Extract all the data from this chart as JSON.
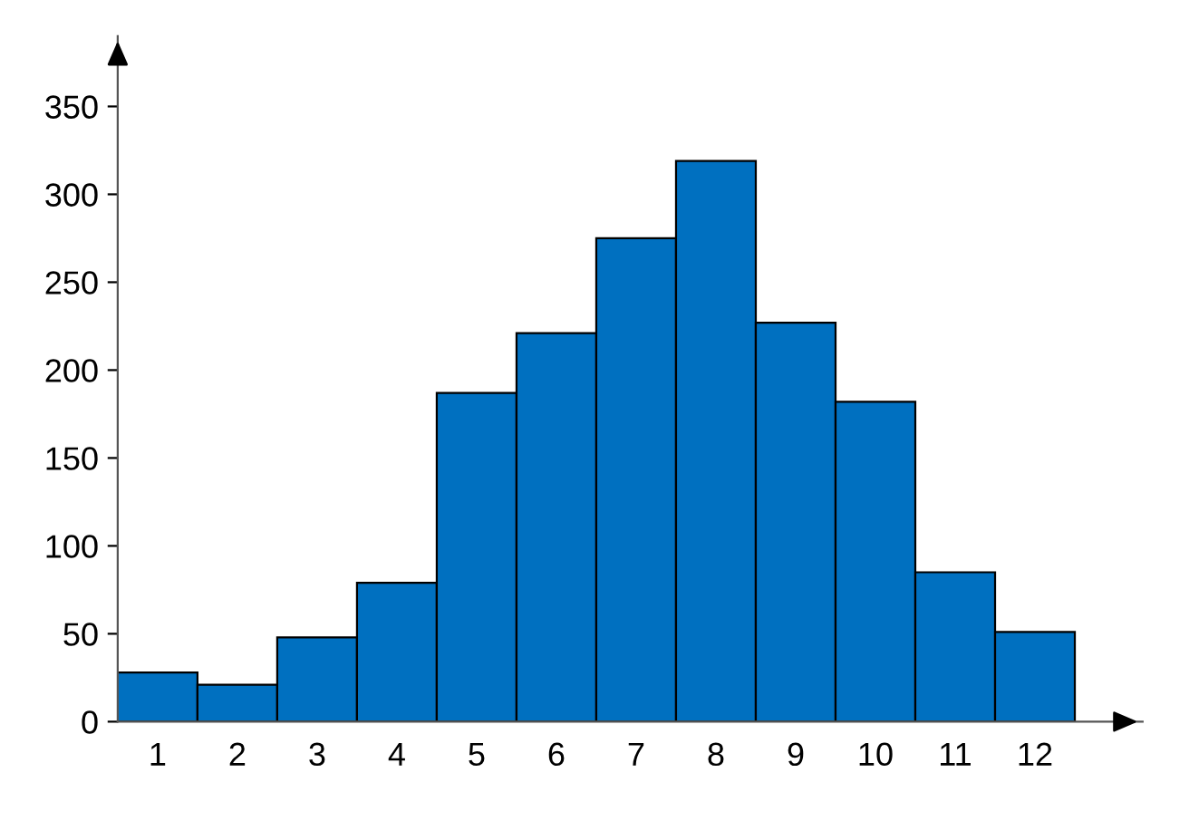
{
  "chart_data": {
    "type": "bar",
    "categories": [
      "1",
      "2",
      "3",
      "4",
      "5",
      "6",
      "7",
      "8",
      "9",
      "10",
      "11",
      "12"
    ],
    "values": [
      28,
      21,
      48,
      79,
      187,
      221,
      275,
      319,
      227,
      182,
      85,
      51
    ],
    "color": "#0070c0",
    "ylim": [
      0,
      390
    ],
    "yticks": [
      0,
      50,
      100,
      150,
      200,
      250,
      300,
      350
    ],
    "grid": false
  }
}
